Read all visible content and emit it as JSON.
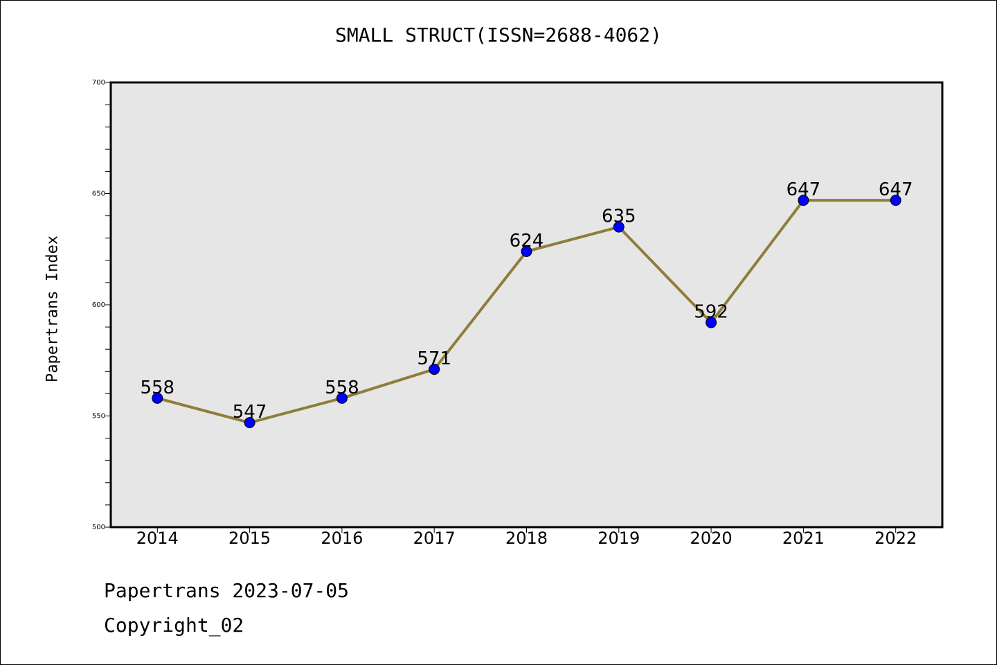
{
  "chart_data": {
    "type": "line",
    "title": "SMALL STRUCT(ISSN=2688-4062)",
    "xlabel": "",
    "ylabel": "Papertrans Index",
    "categories": [
      "2014",
      "2015",
      "2016",
      "2017",
      "2018",
      "2019",
      "2020",
      "2021",
      "2022"
    ],
    "series": [
      {
        "values": [
          558,
          547,
          558,
          571,
          624,
          635,
          592,
          647,
          647
        ]
      }
    ],
    "ylim": [
      500,
      700
    ],
    "yticks": [
      500,
      550,
      600,
      650,
      700
    ],
    "y_minor_step": 10,
    "grid": false,
    "colors": {
      "plot_background": "#e6e6e6",
      "line": "#8f7d3a",
      "marker": "#0000ff"
    }
  },
  "footer": {
    "source_date": "Papertrans 2023-07-05",
    "copyright": "Copyright_02"
  }
}
